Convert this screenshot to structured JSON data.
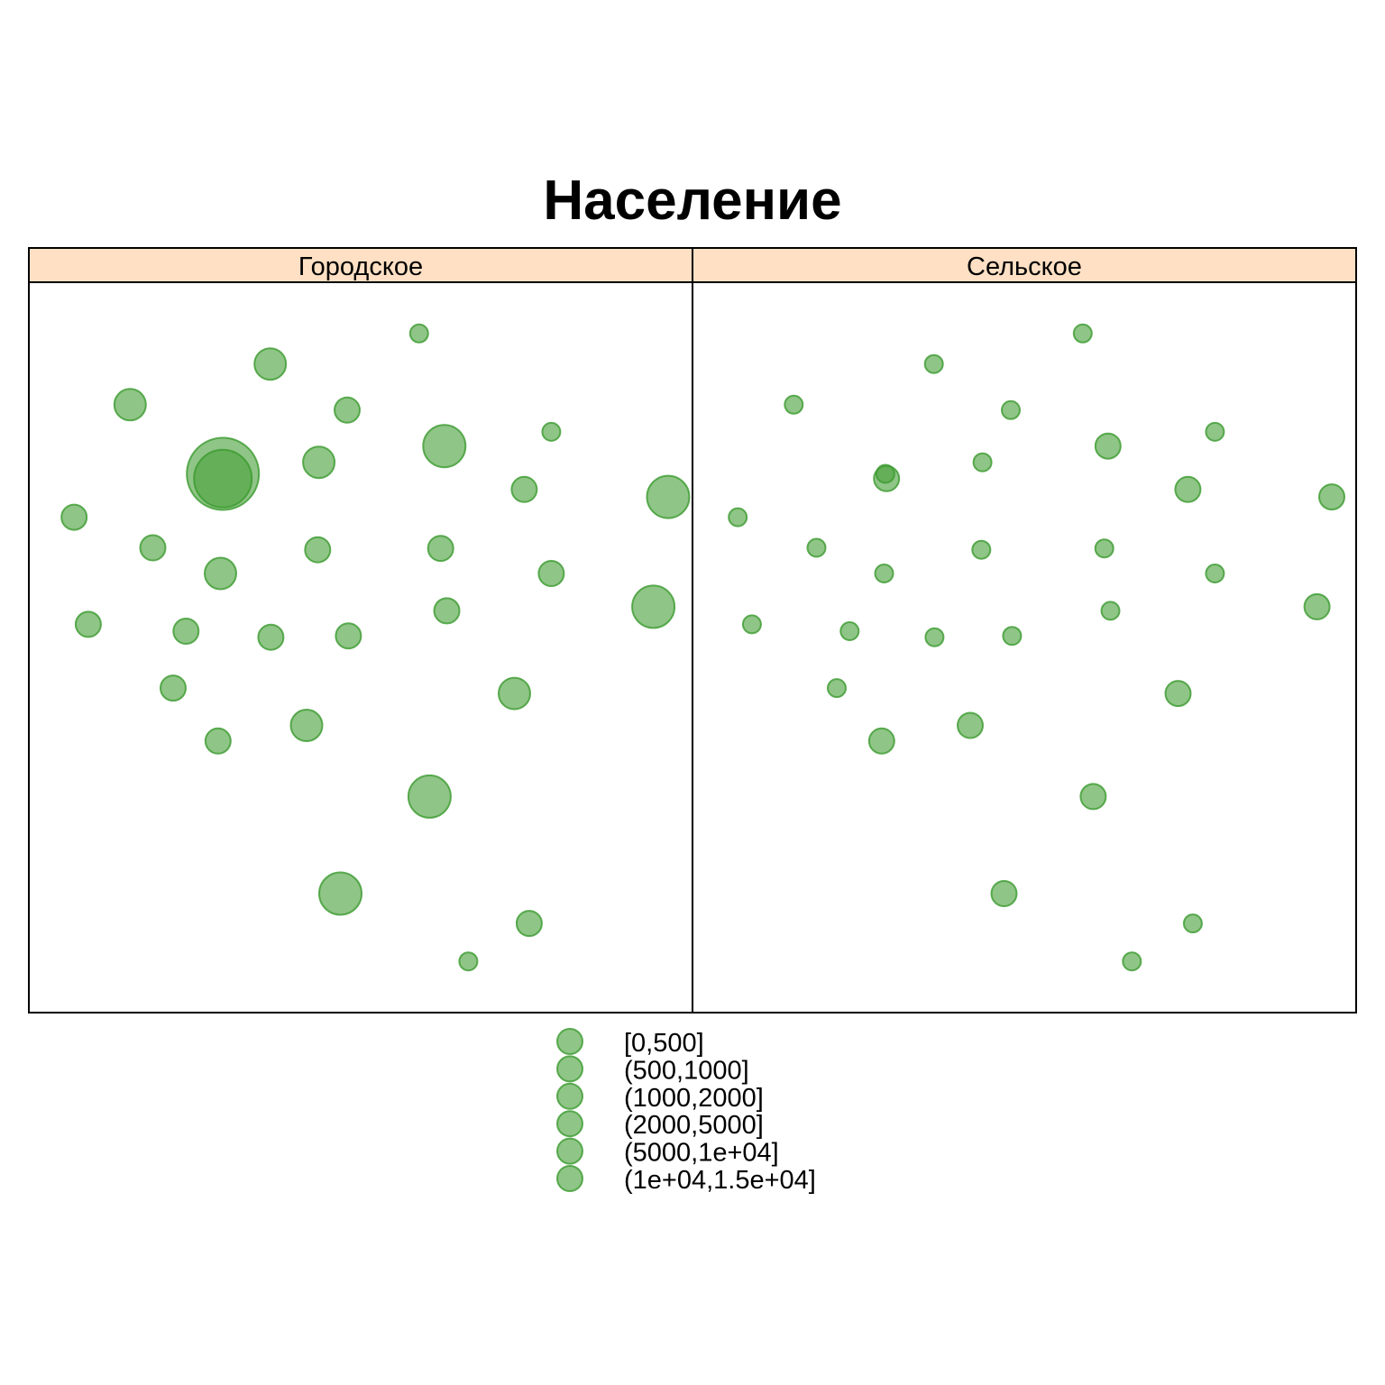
{
  "chart_data": {
    "type": "scatter",
    "title": "Население",
    "panels": [
      {
        "name": "Городское",
        "points": [
          {
            "x": 0.595,
            "y": 0.963,
            "cls": 0
          },
          {
            "x": 0.353,
            "y": 0.918,
            "cls": 2
          },
          {
            "x": 0.125,
            "y": 0.858,
            "cls": 2
          },
          {
            "x": 0.478,
            "y": 0.85,
            "cls": 1
          },
          {
            "x": 0.81,
            "y": 0.818,
            "cls": 0
          },
          {
            "x": 0.636,
            "y": 0.797,
            "cls": 3
          },
          {
            "x": 0.276,
            "y": 0.756,
            "cls": 5
          },
          {
            "x": 0.276,
            "y": 0.749,
            "cls": 4
          },
          {
            "x": 0.432,
            "y": 0.773,
            "cls": 2
          },
          {
            "x": 0.766,
            "y": 0.733,
            "cls": 1
          },
          {
            "x": 1.0,
            "y": 0.722,
            "cls": 3
          },
          {
            "x": 0.034,
            "y": 0.692,
            "cls": 1
          },
          {
            "x": 0.162,
            "y": 0.647,
            "cls": 1
          },
          {
            "x": 0.43,
            "y": 0.644,
            "cls": 1
          },
          {
            "x": 0.63,
            "y": 0.646,
            "cls": 1
          },
          {
            "x": 0.272,
            "y": 0.609,
            "cls": 2
          },
          {
            "x": 0.81,
            "y": 0.609,
            "cls": 1
          },
          {
            "x": 0.976,
            "y": 0.56,
            "cls": 3
          },
          {
            "x": 0.64,
            "y": 0.554,
            "cls": 1
          },
          {
            "x": 0.057,
            "y": 0.534,
            "cls": 1
          },
          {
            "x": 0.216,
            "y": 0.524,
            "cls": 1
          },
          {
            "x": 0.354,
            "y": 0.515,
            "cls": 1
          },
          {
            "x": 0.48,
            "y": 0.517,
            "cls": 1
          },
          {
            "x": 0.195,
            "y": 0.44,
            "cls": 1
          },
          {
            "x": 0.75,
            "y": 0.432,
            "cls": 2
          },
          {
            "x": 0.412,
            "y": 0.385,
            "cls": 2
          },
          {
            "x": 0.268,
            "y": 0.362,
            "cls": 1
          },
          {
            "x": 0.612,
            "y": 0.28,
            "cls": 3
          },
          {
            "x": 0.467,
            "y": 0.137,
            "cls": 3
          },
          {
            "x": 0.774,
            "y": 0.093,
            "cls": 1
          },
          {
            "x": 0.675,
            "y": 0.037,
            "cls": 0
          }
        ]
      },
      {
        "name": "Сельское",
        "points": [
          {
            "x": 0.595,
            "y": 0.963,
            "cls": 0
          },
          {
            "x": 0.353,
            "y": 0.918,
            "cls": 0
          },
          {
            "x": 0.125,
            "y": 0.858,
            "cls": 0
          },
          {
            "x": 0.478,
            "y": 0.85,
            "cls": 0
          },
          {
            "x": 0.81,
            "y": 0.818,
            "cls": 0
          },
          {
            "x": 0.636,
            "y": 0.797,
            "cls": 1
          },
          {
            "x": 0.276,
            "y": 0.749,
            "cls": 1
          },
          {
            "x": 0.274,
            "y": 0.756,
            "cls": 0
          },
          {
            "x": 0.432,
            "y": 0.773,
            "cls": 0
          },
          {
            "x": 0.766,
            "y": 0.733,
            "cls": 1
          },
          {
            "x": 1.0,
            "y": 0.722,
            "cls": 1
          },
          {
            "x": 0.034,
            "y": 0.692,
            "cls": 0
          },
          {
            "x": 0.162,
            "y": 0.647,
            "cls": 0
          },
          {
            "x": 0.43,
            "y": 0.644,
            "cls": 0
          },
          {
            "x": 0.63,
            "y": 0.646,
            "cls": 0
          },
          {
            "x": 0.272,
            "y": 0.609,
            "cls": 0
          },
          {
            "x": 0.81,
            "y": 0.609,
            "cls": 0
          },
          {
            "x": 0.976,
            "y": 0.56,
            "cls": 1
          },
          {
            "x": 0.64,
            "y": 0.554,
            "cls": 0
          },
          {
            "x": 0.057,
            "y": 0.534,
            "cls": 0
          },
          {
            "x": 0.216,
            "y": 0.524,
            "cls": 0
          },
          {
            "x": 0.354,
            "y": 0.515,
            "cls": 0
          },
          {
            "x": 0.48,
            "y": 0.517,
            "cls": 0
          },
          {
            "x": 0.195,
            "y": 0.44,
            "cls": 0
          },
          {
            "x": 0.75,
            "y": 0.432,
            "cls": 1
          },
          {
            "x": 0.412,
            "y": 0.385,
            "cls": 1
          },
          {
            "x": 0.268,
            "y": 0.362,
            "cls": 1
          },
          {
            "x": 0.612,
            "y": 0.28,
            "cls": 1
          },
          {
            "x": 0.467,
            "y": 0.137,
            "cls": 1
          },
          {
            "x": 0.774,
            "y": 0.093,
            "cls": 0
          },
          {
            "x": 0.675,
            "y": 0.037,
            "cls": 0
          }
        ]
      }
    ],
    "legend": {
      "placement": "bottom",
      "entries": [
        "[0,500]",
        "(500,1000]",
        "(1000,2000]",
        "(2000,5000]",
        "(5000,1e+04]",
        "(1e+04,1.5e+04]"
      ]
    },
    "colors": {
      "point_fill": "#4aa13c",
      "point_stroke": "#3a9a2e",
      "strip_fill": "#ffe0c4",
      "frame": "#000000"
    }
  }
}
